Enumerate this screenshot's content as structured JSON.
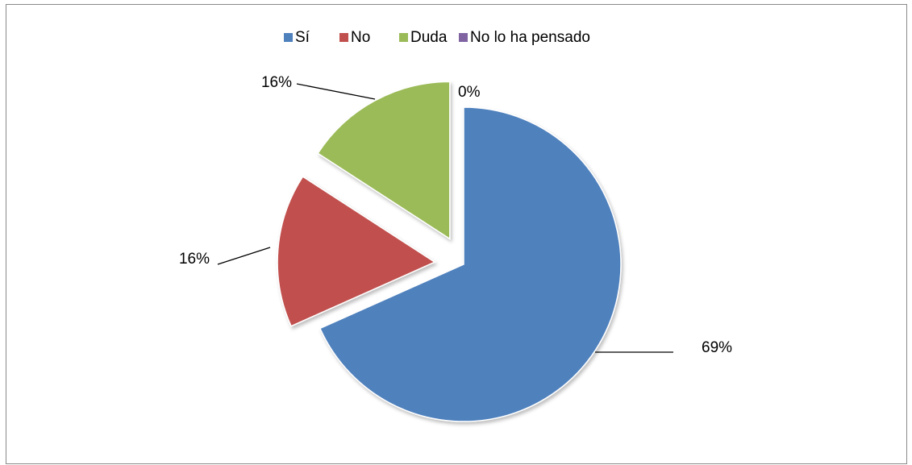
{
  "chart_data": {
    "type": "pie",
    "categories": [
      "Sí",
      "No",
      "Duda",
      "No lo ha pensado"
    ],
    "values": [
      69,
      16,
      16,
      0
    ],
    "value_labels": [
      "69%",
      "16%",
      "16%",
      "0%"
    ],
    "colors": [
      "#4f81bd",
      "#c0504d",
      "#9bbb59",
      "#8064a2"
    ],
    "legend": "top"
  }
}
